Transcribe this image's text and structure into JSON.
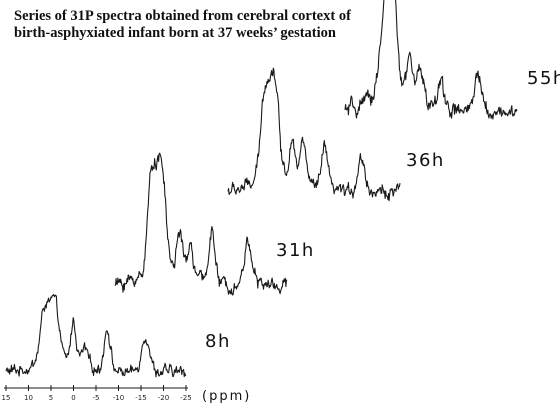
{
  "title_lines": [
    "Series of 31P spectra obtained from cerebral cortext of",
    "birth-asphyxiated infant born at 37 weeks’ gestation"
  ],
  "chart_data": {
    "type": "line",
    "title": "Series of 31P spectra obtained from cerebral cortext of birth-asphyxiated infant born at 37 weeks’ gestation",
    "xlabel": "(ppm)",
    "ylabel": "",
    "x_reversed": true,
    "xlim": [
      15,
      -25
    ],
    "x_ticks": [
      15,
      10,
      5,
      0,
      -5,
      -10,
      -15,
      -20,
      -25
    ],
    "x_tick_labels": [
      "15",
      "10",
      "5",
      "0",
      "-5",
      "-10",
      "-15",
      "-20",
      "-25"
    ],
    "grid": false,
    "layout": "stacked spectra, later times offset up and to the right",
    "peak_positions_ppm": [
      6.5,
      4.8,
      3.7,
      0,
      -2.5,
      -7.5,
      -16
    ],
    "series": [
      {
        "name": "8h",
        "peaks": [
          {
            "ppm": 6.5,
            "height": 0.62,
            "width": 0.9
          },
          {
            "ppm": 4.8,
            "height": 0.48,
            "width": 0.9
          },
          {
            "ppm": 3.7,
            "height": 0.4,
            "width": 0.8
          },
          {
            "ppm": 0,
            "height": 0.5,
            "width": 0.6
          },
          {
            "ppm": -2.5,
            "height": 0.2,
            "width": 0.7
          },
          {
            "ppm": -7.5,
            "height": 0.52,
            "width": 0.7
          },
          {
            "ppm": -16,
            "height": 0.45,
            "width": 0.9
          }
        ],
        "hump": 0.14
      },
      {
        "name": "31h",
        "peaks": [
          {
            "ppm": 6.5,
            "height": 0.95,
            "width": 0.9
          },
          {
            "ppm": 4.8,
            "height": 0.75,
            "width": 0.9
          },
          {
            "ppm": 3.7,
            "height": 0.55,
            "width": 0.8
          },
          {
            "ppm": 0,
            "height": 0.42,
            "width": 0.6
          },
          {
            "ppm": -2.5,
            "height": 0.3,
            "width": 0.7
          },
          {
            "ppm": -7.5,
            "height": 0.55,
            "width": 0.7
          },
          {
            "ppm": -16,
            "height": 0.45,
            "width": 0.9
          }
        ],
        "hump": 0.18
      },
      {
        "name": "36h",
        "peaks": [
          {
            "ppm": 6.5,
            "height": 0.85,
            "width": 0.9
          },
          {
            "ppm": 4.8,
            "height": 0.72,
            "width": 0.9
          },
          {
            "ppm": 3.7,
            "height": 0.55,
            "width": 0.8
          },
          {
            "ppm": 0,
            "height": 0.45,
            "width": 0.6
          },
          {
            "ppm": -2.5,
            "height": 0.42,
            "width": 0.7
          },
          {
            "ppm": -7.5,
            "height": 0.45,
            "width": 0.7
          },
          {
            "ppm": -16,
            "height": 0.35,
            "width": 0.9
          }
        ],
        "hump": 0.2
      },
      {
        "name": "55h",
        "peaks": [
          {
            "ppm": 6.5,
            "height": 0.4,
            "width": 0.9
          },
          {
            "ppm": 4.8,
            "height": 1.0,
            "width": 0.9
          },
          {
            "ppm": 3.7,
            "height": 0.6,
            "width": 0.8
          },
          {
            "ppm": 0,
            "height": 0.3,
            "width": 0.6
          },
          {
            "ppm": -2.5,
            "height": 0.3,
            "width": 0.7
          },
          {
            "ppm": -7.5,
            "height": 0.25,
            "width": 0.7
          },
          {
            "ppm": -16,
            "height": 0.3,
            "width": 0.9
          }
        ],
        "hump": 0.22
      }
    ]
  }
}
